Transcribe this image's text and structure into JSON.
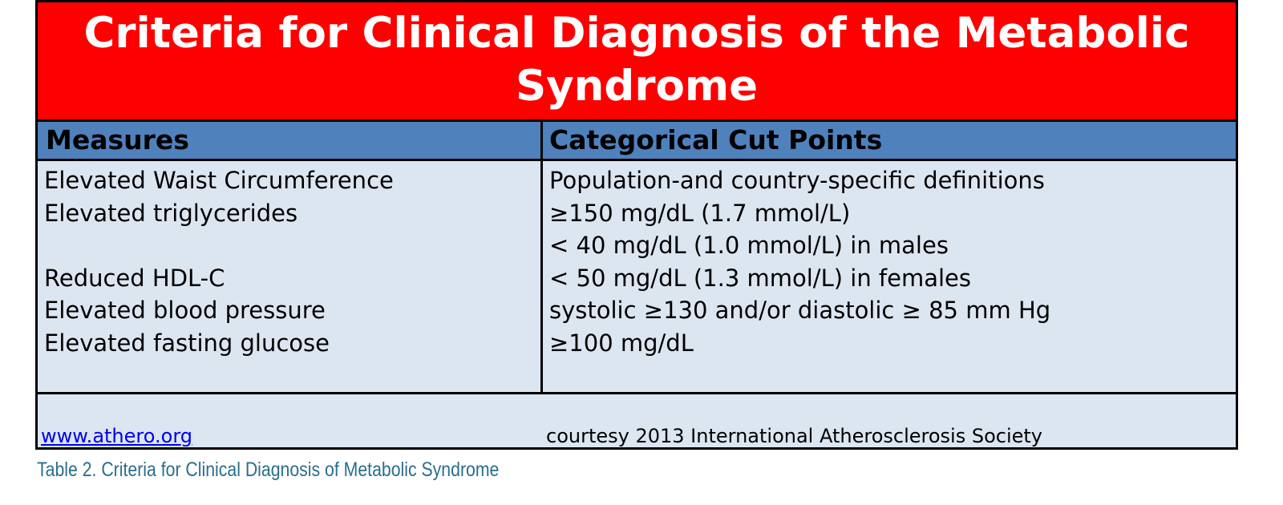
{
  "title": "Criteria for Clinical Diagnosis of the Metabolic Syndrome",
  "table": {
    "header": [
      "Measures",
      "Categorical Cut Points"
    ],
    "rows": [
      {
        "measure": "Elevated Waist Circumference",
        "cut_points": [
          "Population-and country-specific definitions"
        ]
      },
      {
        "measure": "Elevated triglycerides",
        "cut_points": [
          "≥150 mg/dL (1.7 mmol/L)"
        ]
      },
      {
        "measure": "Reduced HDL-C",
        "cut_points": [
          "< 40 mg/dL (1.0 mmol/L) in males",
          "< 50 mg/dL (1.3 mmol/L) in females"
        ]
      },
      {
        "measure": "Elevated blood pressure",
        "cut_points": [
          "systolic ≥130 and/or diastolic ≥ 85 mm Hg"
        ]
      },
      {
        "measure": "Elevated fasting glucose",
        "cut_points": [
          "≥100 mg/dL"
        ]
      }
    ]
  },
  "footer": {
    "link": "www.athero.org",
    "credit": "courtesy 2013 International Atherosclerosis Society"
  },
  "caption": "Table 2. Criteria for Clinical Diagnosis of Metabolic Syndrome"
}
